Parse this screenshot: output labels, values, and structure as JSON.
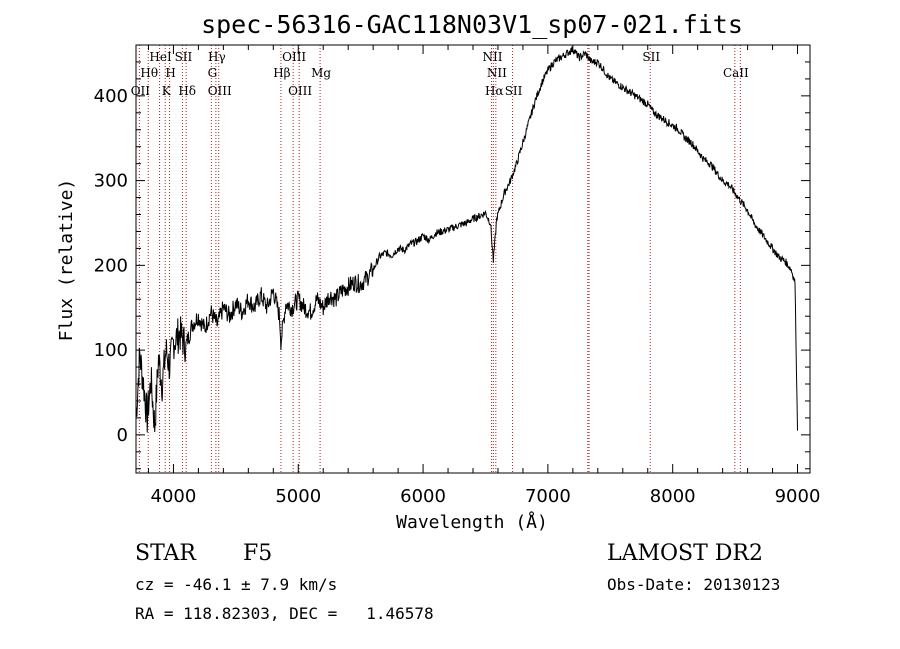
{
  "chart_data": {
    "type": "line",
    "title": "spec-56316-GAC118N03V1_sp07-021.fits",
    "xlabel": "Wavelength (Å)",
    "ylabel": "Flux (relative)",
    "xlim": [
      3700,
      9100
    ],
    "ylim": [
      -45,
      460
    ],
    "xticks": [
      4000,
      5000,
      6000,
      7000,
      8000,
      9000
    ],
    "yticks": [
      0,
      100,
      200,
      300,
      400
    ],
    "series": [
      {
        "values_note": "approximate spectrum trace",
        "x": [
          3700,
          3730,
          3760,
          3790,
          3820,
          3850,
          3880,
          3910,
          3940,
          3970,
          4000,
          4050,
          4100,
          4150,
          4200,
          4250,
          4300,
          4350,
          4400,
          4450,
          4500,
          4550,
          4600,
          4650,
          4700,
          4750,
          4800,
          4850,
          4861,
          4900,
          4950,
          5000,
          5050,
          5100,
          5150,
          5200,
          5250,
          5300,
          5350,
          5400,
          5450,
          5500,
          5550,
          5600,
          5650,
          5700,
          5750,
          5800,
          5850,
          5900,
          5950,
          6000,
          6050,
          6100,
          6150,
          6200,
          6250,
          6300,
          6350,
          6400,
          6450,
          6500,
          6540,
          6563,
          6590,
          6620,
          6650,
          6700,
          6750,
          6800,
          6850,
          6900,
          6950,
          7000,
          7050,
          7100,
          7150,
          7200,
          7250,
          7300,
          7350,
          7400,
          7450,
          7500,
          7550,
          7600,
          7650,
          7700,
          7750,
          7800,
          7850,
          7900,
          7950,
          8000,
          8050,
          8100,
          8150,
          8200,
          8250,
          8300,
          8350,
          8400,
          8450,
          8500,
          8550,
          8600,
          8650,
          8700,
          8750,
          8800,
          8850,
          8900,
          8950,
          8980,
          9000
        ],
        "y": [
          20,
          95,
          60,
          20,
          65,
          10,
          90,
          60,
          100,
          80,
          110,
          120,
          105,
          130,
          140,
          125,
          145,
          130,
          150,
          140,
          155,
          145,
          160,
          150,
          165,
          150,
          170,
          140,
          110,
          155,
          150,
          160,
          150,
          145,
          160,
          150,
          165,
          160,
          170,
          175,
          180,
          178,
          185,
          195,
          210,
          215,
          212,
          220,
          218,
          225,
          228,
          235,
          230,
          238,
          240,
          242,
          245,
          248,
          250,
          255,
          258,
          262,
          250,
          205,
          255,
          270,
          285,
          300,
          320,
          345,
          370,
          395,
          415,
          430,
          440,
          445,
          450,
          455,
          445,
          450,
          440,
          440,
          430,
          420,
          415,
          410,
          405,
          400,
          395,
          390,
          380,
          375,
          370,
          365,
          360,
          350,
          345,
          335,
          325,
          320,
          310,
          300,
          295,
          285,
          275,
          265,
          250,
          240,
          230,
          220,
          210,
          205,
          195,
          180,
          5
        ]
      }
    ],
    "line_markers": [
      {
        "x": 3727,
        "label": "OII",
        "row": 3
      },
      {
        "x": 3798,
        "label": "Hθ",
        "row": 2
      },
      {
        "x": 3889,
        "label": "HeI",
        "row": 1
      },
      {
        "x": 3934,
        "label": "K",
        "row": 3
      },
      {
        "x": 3969,
        "label": "H",
        "row": 2
      },
      {
        "x": 4072,
        "label": "SII",
        "row": 1
      },
      {
        "x": 4102,
        "label": "Hδ",
        "row": 3
      },
      {
        "x": 4304,
        "label": "G",
        "row": 2
      },
      {
        "x": 4340,
        "label": "Hγ",
        "row": 1
      },
      {
        "x": 4363,
        "label": "OIII",
        "row": 3
      },
      {
        "x": 4861,
        "label": "Hβ",
        "row": 2
      },
      {
        "x": 4959,
        "label": "OIII",
        "row": 1
      },
      {
        "x": 5007,
        "label": "OIII",
        "row": 3
      },
      {
        "x": 5175,
        "label": "Mg",
        "row": 2
      },
      {
        "x": 6548,
        "label": "NII",
        "row": 1
      },
      {
        "x": 6563,
        "label": "Hα",
        "row": 3
      },
      {
        "x": 6583,
        "label": "NII",
        "row": 2
      },
      {
        "x": 6717,
        "label": "SII",
        "row": 3
      },
      {
        "x": 7320,
        "label": "",
        "row": 0
      },
      {
        "x": 7330,
        "label": "",
        "row": 0
      },
      {
        "x": 7820,
        "label": "SII",
        "row": 1
      },
      {
        "x": 8498,
        "label": "CaII",
        "row": 2
      },
      {
        "x": 8542,
        "label": "",
        "row": 0
      }
    ],
    "grid": false
  },
  "info": {
    "object_class": "STAR",
    "subclass": "F5",
    "redshift": "cz = -46.1 ± 7.9 km/s",
    "coords": "RA = 118.82303, DEC =   1.46578",
    "survey": "LAMOST DR2",
    "obs_date": "Obs-Date: 20130123"
  },
  "colors": {
    "spectrum": "#000000",
    "markers": "#b22222"
  }
}
